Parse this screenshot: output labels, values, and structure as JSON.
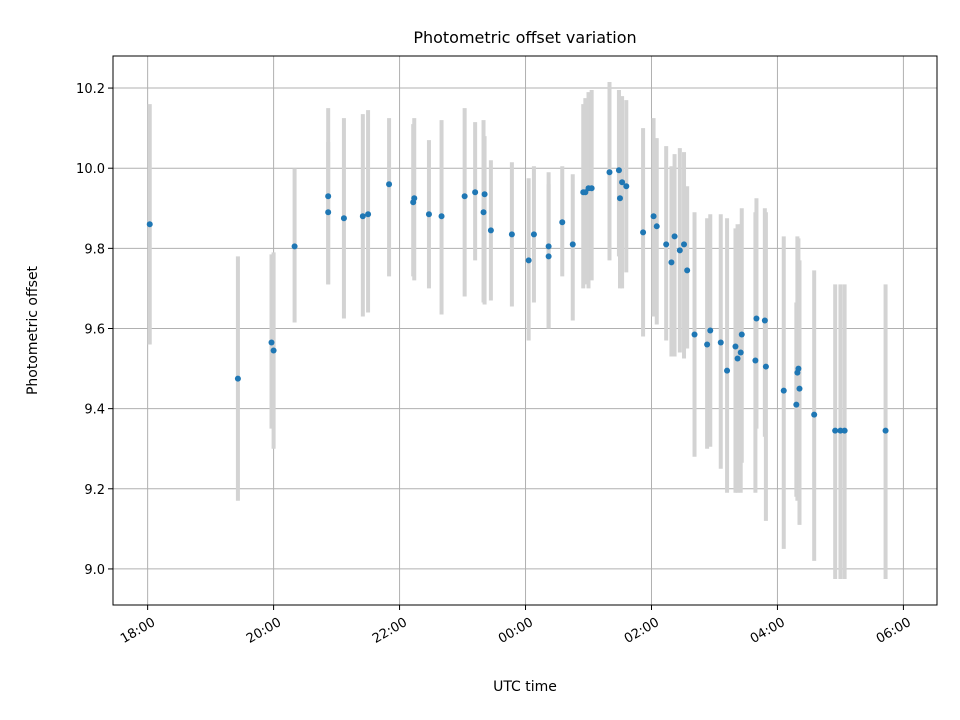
{
  "chart_data": {
    "type": "scatter",
    "title": "Photometric offset variation",
    "xlabel": "UTC time",
    "ylabel": "Photometric offset",
    "x_axis_kind": "time",
    "x_ticks": [
      "18:00",
      "20:00",
      "22:00",
      "00:00",
      "02:00",
      "04:00",
      "06:00"
    ],
    "y_ticks": [
      "9.0",
      "9.2",
      "9.4",
      "9.6",
      "9.8",
      "10.0",
      "10.2"
    ],
    "ylim": [
      8.91,
      10.28
    ],
    "xlim": [
      "17:27",
      "06:32"
    ],
    "grid": true,
    "colors": {
      "point": "#1f77b4",
      "errorbar": "#d3d3d3"
    },
    "series": [
      {
        "x": [
          "18:02",
          "19:26",
          "19:58",
          "20:00",
          "20:20",
          "20:52",
          "20:52",
          "21:07",
          "21:25",
          "21:30",
          "21:50",
          "22:13",
          "22:14",
          "22:28",
          "22:40",
          "23:02",
          "23:12",
          "23:20",
          "23:21",
          "23:27",
          "23:47",
          "00:03",
          "00:08",
          "00:22",
          "00:22",
          "00:35",
          "00:45",
          "00:55",
          "00:57",
          "01:00",
          "01:03",
          "01:20",
          "01:29",
          "01:30",
          "01:32",
          "01:36",
          "01:52",
          "02:02",
          "02:05",
          "02:14",
          "02:19",
          "02:22",
          "02:27",
          "02:31",
          "02:34",
          "02:41",
          "02:53",
          "02:56",
          "03:06",
          "03:12",
          "03:20",
          "03:22",
          "03:25",
          "03:26",
          "03:39",
          "03:40",
          "03:48",
          "03:49",
          "04:06",
          "04:18",
          "04:19",
          "04:20",
          "04:21",
          "04:35",
          "04:55",
          "05:00",
          "05:04",
          "05:43"
        ],
        "y": [
          9.86,
          9.475,
          9.565,
          9.545,
          9.805,
          9.93,
          9.89,
          9.875,
          9.88,
          9.885,
          9.96,
          9.915,
          9.925,
          9.885,
          9.88,
          9.93,
          9.94,
          9.89,
          9.935,
          9.845,
          9.835,
          9.77,
          9.835,
          9.805,
          9.78,
          9.865,
          9.81,
          9.94,
          9.94,
          9.95,
          9.95,
          9.99,
          9.995,
          9.925,
          9.965,
          9.955,
          9.84,
          9.88,
          9.855,
          9.81,
          9.765,
          9.83,
          9.795,
          9.81,
          9.745,
          9.585,
          9.56,
          9.595,
          9.565,
          9.495,
          9.555,
          9.525,
          9.54,
          9.585,
          9.52,
          9.625,
          9.62,
          9.505,
          9.445,
          9.41,
          9.49,
          9.5,
          9.45,
          9.385,
          9.345,
          9.345,
          9.345,
          9.345
        ],
        "y_low": [
          9.56,
          9.17,
          9.35,
          9.3,
          9.615,
          9.71,
          9.71,
          9.625,
          9.63,
          9.64,
          9.73,
          9.73,
          9.72,
          9.7,
          9.635,
          9.68,
          9.77,
          9.665,
          9.66,
          9.67,
          9.655,
          9.57,
          9.665,
          9.6,
          9.6,
          9.73,
          9.62,
          9.7,
          9.71,
          9.7,
          9.72,
          9.77,
          9.78,
          9.7,
          9.7,
          9.74,
          9.58,
          9.63,
          9.61,
          9.57,
          9.53,
          9.53,
          9.54,
          9.525,
          9.55,
          9.28,
          9.3,
          9.305,
          9.25,
          9.19,
          9.19,
          9.19,
          9.19,
          9.265,
          9.19,
          9.35,
          9.33,
          9.12,
          9.05,
          9.18,
          9.17,
          9.18,
          9.11,
          9.02,
          8.975,
          8.975,
          8.975,
          8.975
        ],
        "y_high": [
          10.16,
          9.78,
          9.785,
          9.79,
          10.0,
          10.15,
          10.065,
          10.125,
          10.135,
          10.145,
          10.125,
          10.11,
          10.125,
          10.07,
          10.12,
          10.15,
          10.115,
          10.12,
          10.08,
          10.02,
          10.015,
          9.975,
          10.005,
          9.99,
          9.96,
          10.005,
          9.985,
          10.16,
          10.175,
          10.19,
          10.195,
          10.215,
          10.195,
          10.145,
          10.18,
          10.17,
          10.1,
          10.125,
          10.075,
          10.055,
          10.005,
          10.035,
          10.05,
          10.04,
          9.955,
          9.89,
          9.875,
          9.885,
          9.885,
          9.875,
          9.85,
          9.86,
          9.86,
          9.9,
          9.89,
          9.925,
          9.9,
          9.89,
          9.83,
          9.665,
          9.83,
          9.825,
          9.77,
          9.745,
          9.71,
          9.71,
          9.71,
          9.71
        ]
      }
    ]
  }
}
